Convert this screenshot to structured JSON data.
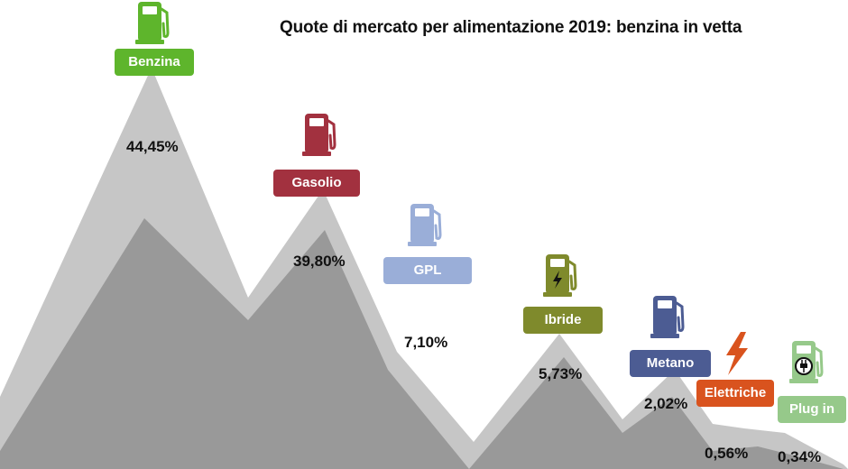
{
  "chart_data": {
    "type": "area",
    "title": "Quote di mercato per alimentazione 2019: benzina in vetta",
    "categories": [
      "Benzina",
      "Gasolio",
      "GPL",
      "Ibride",
      "Metano",
      "Elettriche",
      "Plug in"
    ],
    "values": [
      44.45,
      39.8,
      7.1,
      5.73,
      2.02,
      0.56,
      0.34
    ],
    "value_labels": [
      "44,45%",
      "39,80%",
      "7,10%",
      "5,73%",
      "2,02%",
      "0,56%",
      "0,34%"
    ],
    "unit": "%",
    "grid": false,
    "legend": "none"
  },
  "colors": {
    "Benzina": "#5eb52c",
    "Gasolio": "#a2313f",
    "GPL": "#9aaed8",
    "Ibride": "#7f8a2c",
    "Metano": "#4c5c93",
    "Elettriche": "#d9531e",
    "Plug in": "#96c98a",
    "mountain_outer": "#c6c6c6",
    "mountain_inner": "#999999"
  },
  "icons": {
    "Benzina": "fuel-pump-icon",
    "Gasolio": "fuel-pump-icon",
    "GPL": "fuel-pump-icon",
    "Ibride": "hybrid-pump-icon",
    "Metano": "fuel-pump-icon",
    "Elettriche": "lightning-bolt-icon",
    "Plug in": "plug-pump-icon"
  }
}
